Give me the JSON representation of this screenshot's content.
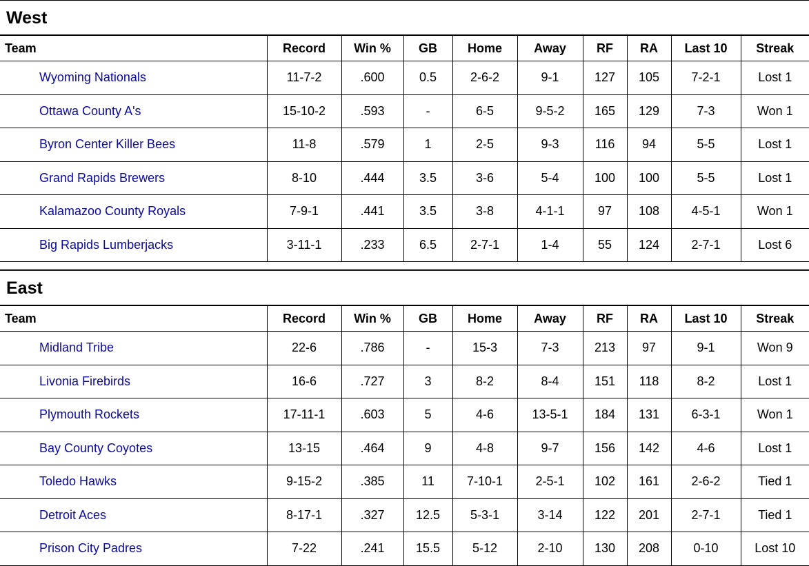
{
  "columns": [
    "Team",
    "Record",
    "Win %",
    "GB",
    "Home",
    "Away",
    "RF",
    "RA",
    "Last 10",
    "Streak"
  ],
  "divisions": [
    {
      "name": "West",
      "rows": [
        [
          "Wyoming Nationals",
          "11-7-2",
          ".600",
          "0.5",
          "2-6-2",
          "9-1",
          "127",
          "105",
          "7-2-1",
          "Lost 1"
        ],
        [
          "Ottawa County A's",
          "15-10-2",
          ".593",
          "-",
          "6-5",
          "9-5-2",
          "165",
          "129",
          "7-3",
          "Won 1"
        ],
        [
          "Byron Center Killer Bees",
          "11-8",
          ".579",
          "1",
          "2-5",
          "9-3",
          "116",
          "94",
          "5-5",
          "Lost 1"
        ],
        [
          "Grand Rapids Brewers",
          "8-10",
          ".444",
          "3.5",
          "3-6",
          "5-4",
          "100",
          "100",
          "5-5",
          "Lost 1"
        ],
        [
          "Kalamazoo County Royals",
          "7-9-1",
          ".441",
          "3.5",
          "3-8",
          "4-1-1",
          "97",
          "108",
          "4-5-1",
          "Won 1"
        ],
        [
          "Big Rapids Lumberjacks",
          "3-11-1",
          ".233",
          "6.5",
          "2-7-1",
          "1-4",
          "55",
          "124",
          "2-7-1",
          "Lost 6"
        ]
      ]
    },
    {
      "name": "East",
      "rows": [
        [
          "Midland Tribe",
          "22-6",
          ".786",
          "-",
          "15-3",
          "7-3",
          "213",
          "97",
          "9-1",
          "Won 9"
        ],
        [
          "Livonia Firebirds",
          "16-6",
          ".727",
          "3",
          "8-2",
          "8-4",
          "151",
          "118",
          "8-2",
          "Lost 1"
        ],
        [
          "Plymouth Rockets",
          "17-11-1",
          ".603",
          "5",
          "4-6",
          "13-5-1",
          "184",
          "131",
          "6-3-1",
          "Won 1"
        ],
        [
          "Bay County Coyotes",
          "13-15",
          ".464",
          "9",
          "4-8",
          "9-7",
          "156",
          "142",
          "4-6",
          "Lost 1"
        ],
        [
          "Toledo Hawks",
          "9-15-2",
          ".385",
          "11",
          "7-10-1",
          "2-5-1",
          "102",
          "161",
          "2-6-2",
          "Tied 1"
        ],
        [
          "Detroit Aces",
          "8-17-1",
          ".327",
          "12.5",
          "5-3-1",
          "3-14",
          "122",
          "201",
          "2-7-1",
          "Tied 1"
        ],
        [
          "Prison City Padres",
          "7-22",
          ".241",
          "15.5",
          "5-12",
          "2-10",
          "130",
          "208",
          "0-10",
          "Lost 10"
        ]
      ]
    }
  ]
}
